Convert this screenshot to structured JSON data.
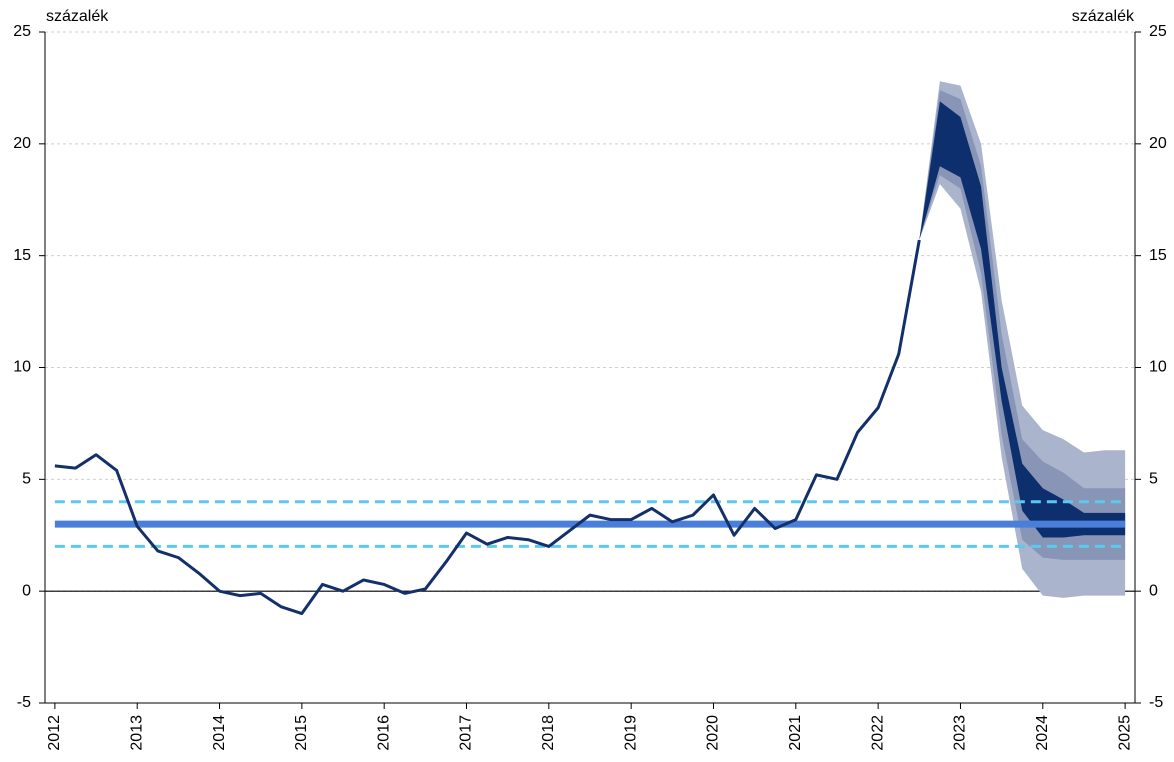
{
  "chart_data": {
    "type": "line",
    "y_label_left": "százalék",
    "y_label_right": "százalék",
    "xlim": [
      2011.88,
      2025.12
    ],
    "xticks": [
      2012,
      2013,
      2014,
      2015,
      2016,
      2017,
      2018,
      2019,
      2020,
      2021,
      2022,
      2023,
      2024,
      2025
    ],
    "ylim": [
      -5,
      25
    ],
    "yticks": [
      -5,
      0,
      5,
      10,
      15,
      20,
      25
    ],
    "y2lim": [
      -5,
      25
    ],
    "y2ticks": [
      -5,
      0,
      5,
      10,
      15,
      20,
      25
    ],
    "grid": true,
    "series": [
      {
        "color": "#13306b",
        "x": [
          2012,
          2012.25,
          2012.5,
          2012.75,
          2013,
          2013.25,
          2013.5,
          2013.75,
          2014,
          2014.25,
          2014.5,
          2014.75,
          2015,
          2015.25,
          2015.5,
          2015.75,
          2016,
          2016.25,
          2016.5,
          2016.75,
          2017,
          2017.25,
          2017.5,
          2017.75,
          2018,
          2018.25,
          2018.5,
          2018.75,
          2019,
          2019.25,
          2019.5,
          2019.75,
          2020,
          2020.25,
          2020.5,
          2020.75,
          2021,
          2021.25,
          2021.5,
          2021.75,
          2022,
          2022.25,
          2022.5
        ],
        "values": [
          5.6,
          5.5,
          6.1,
          5.4,
          2.9,
          1.8,
          1.5,
          0.8,
          0.0,
          -0.2,
          -0.1,
          -0.7,
          -1.0,
          0.3,
          0.0,
          0.5,
          0.3,
          -0.1,
          0.1,
          1.3,
          2.6,
          2.1,
          2.4,
          2.3,
          2.0,
          2.7,
          3.4,
          3.2,
          3.2,
          3.7,
          3.1,
          3.4,
          4.3,
          2.5,
          3.7,
          2.8,
          3.2,
          5.2,
          5.0,
          7.1,
          8.2,
          10.6,
          15.7
        ]
      }
    ],
    "fan": [
      {
        "color": "#aab4cc",
        "x": [
          2022.5,
          2022.75,
          2023,
          2023.25,
          2023.5,
          2023.75,
          2024,
          2024.25,
          2024.5,
          2024.75,
          2025
        ],
        "upper": [
          15.7,
          22.8,
          22.6,
          20.0,
          13.0,
          8.3,
          7.2,
          6.8,
          6.2,
          6.3,
          6.3
        ],
        "lower": [
          15.7,
          18.2,
          17.1,
          13.4,
          6.0,
          1.0,
          -0.2,
          -0.3,
          -0.2,
          -0.2,
          -0.2
        ]
      },
      {
        "color": "#8995b6",
        "x": [
          2022.5,
          2022.75,
          2023,
          2023.25,
          2023.5,
          2023.75,
          2024,
          2024.25,
          2024.5,
          2024.75,
          2025
        ],
        "upper": [
          15.7,
          22.4,
          22.0,
          19.0,
          11.5,
          6.8,
          5.8,
          5.3,
          4.6,
          4.6,
          4.6
        ],
        "lower": [
          15.7,
          18.6,
          18.0,
          14.2,
          7.0,
          2.3,
          1.5,
          1.4,
          1.4,
          1.4,
          1.4
        ]
      },
      {
        "color": "#0e2f6e",
        "x": [
          2022.5,
          2022.75,
          2023,
          2023.25,
          2023.5,
          2023.75,
          2024,
          2024.25,
          2024.5,
          2024.75,
          2025
        ],
        "upper": [
          15.7,
          21.9,
          21.2,
          18.1,
          10.0,
          5.7,
          4.6,
          4.1,
          3.5,
          3.5,
          3.5
        ],
        "lower": [
          15.7,
          19.0,
          18.5,
          15.3,
          8.5,
          3.6,
          2.4,
          2.4,
          2.5,
          2.5,
          2.5
        ]
      }
    ],
    "reference_lines": [
      {
        "value": 3,
        "color": "#4a7fd9",
        "style": "solid"
      },
      {
        "value": 4,
        "color": "#5bc8f0",
        "style": "dashed"
      },
      {
        "value": 2,
        "color": "#5bc8f0",
        "style": "dashed"
      }
    ]
  }
}
